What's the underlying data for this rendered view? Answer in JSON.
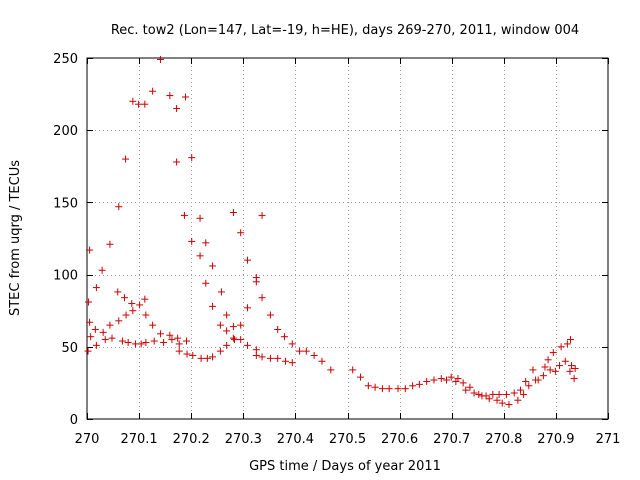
{
  "chart_data": {
    "type": "scatter",
    "title": "Rec. tow2 (Lon=147, Lat=-19, h=HE), days 269-270, 2011, window 004",
    "xlabel": "GPS time / Days of year 2011",
    "ylabel": "STEC from uqrg / TECUs",
    "xlim": [
      270,
      271
    ],
    "ylim": [
      0,
      250
    ],
    "x_ticks": [
      270,
      270.1,
      270.2,
      270.3,
      270.4,
      270.5,
      270.6,
      270.7,
      270.8,
      270.9,
      271
    ],
    "x_tick_labels": [
      "270",
      "270.1",
      "270.2",
      "270.3",
      "270.4",
      "270.5",
      "270.6",
      "270.7",
      "270.8",
      "270.9",
      "271"
    ],
    "y_ticks": [
      0,
      50,
      100,
      150,
      200,
      250
    ],
    "y_tick_labels": [
      "0",
      "50",
      "100",
      "150",
      "200",
      "250"
    ],
    "grid": true,
    "marker": "+",
    "color": "#cc0000",
    "points": [
      [
        270.002,
        47
      ],
      [
        270.007,
        57
      ],
      [
        270.003,
        81
      ],
      [
        270.005,
        117
      ],
      [
        270.005,
        67
      ],
      [
        270.016,
        62
      ],
      [
        270.018,
        51
      ],
      [
        270.018,
        91
      ],
      [
        270.029,
        103
      ],
      [
        270.031,
        60
      ],
      [
        270.035,
        55
      ],
      [
        270.044,
        121
      ],
      [
        270.044,
        65
      ],
      [
        270.048,
        56
      ],
      [
        270.061,
        147
      ],
      [
        270.059,
        88
      ],
      [
        270.061,
        68
      ],
      [
        270.068,
        54
      ],
      [
        270.074,
        180
      ],
      [
        270.072,
        84
      ],
      [
        270.075,
        72
      ],
      [
        270.079,
        53
      ],
      [
        270.088,
        220
      ],
      [
        270.086,
        80
      ],
      [
        270.088,
        75
      ],
      [
        270.093,
        52
      ],
      [
        270.099,
        218
      ],
      [
        270.101,
        79
      ],
      [
        270.104,
        52
      ],
      [
        270.111,
        218
      ],
      [
        270.111,
        83
      ],
      [
        270.113,
        72
      ],
      [
        270.113,
        53
      ],
      [
        270.126,
        227
      ],
      [
        270.126,
        65
      ],
      [
        270.129,
        54
      ],
      [
        270.141,
        249
      ],
      [
        270.141,
        59
      ],
      [
        270.147,
        53
      ],
      [
        270.159,
        224
      ],
      [
        270.159,
        58
      ],
      [
        270.163,
        55
      ],
      [
        270.172,
        215
      ],
      [
        270.172,
        178
      ],
      [
        270.174,
        56
      ],
      [
        270.177,
        52
      ],
      [
        270.177,
        47
      ],
      [
        270.189,
        223
      ],
      [
        270.187,
        141
      ],
      [
        270.191,
        54
      ],
      [
        270.192,
        45
      ],
      [
        270.201,
        181
      ],
      [
        270.201,
        123
      ],
      [
        270.203,
        44
      ],
      [
        270.217,
        139
      ],
      [
        270.217,
        113
      ],
      [
        270.219,
        42
      ],
      [
        270.228,
        122
      ],
      [
        270.228,
        94
      ],
      [
        270.231,
        42
      ],
      [
        270.241,
        106
      ],
      [
        270.241,
        78
      ],
      [
        270.241,
        43
      ],
      [
        270.258,
        88
      ],
      [
        270.256,
        65
      ],
      [
        270.256,
        47
      ],
      [
        270.268,
        72
      ],
      [
        270.268,
        61
      ],
      [
        270.268,
        51
      ],
      [
        270.281,
        143
      ],
      [
        270.281,
        64
      ],
      [
        270.281,
        56
      ],
      [
        270.283,
        55
      ],
      [
        270.295,
        129
      ],
      [
        270.295,
        65
      ],
      [
        270.295,
        55
      ],
      [
        270.308,
        110
      ],
      [
        270.308,
        77
      ],
      [
        270.308,
        51
      ],
      [
        270.325,
        98
      ],
      [
        270.325,
        95
      ],
      [
        270.325,
        48
      ],
      [
        270.325,
        44
      ],
      [
        270.336,
        141
      ],
      [
        270.336,
        84
      ],
      [
        270.336,
        43
      ],
      [
        270.352,
        72
      ],
      [
        270.352,
        42
      ],
      [
        270.366,
        62
      ],
      [
        270.366,
        42
      ],
      [
        270.379,
        57
      ],
      [
        270.381,
        40
      ],
      [
        270.394,
        52
      ],
      [
        270.394,
        39
      ],
      [
        270.408,
        47
      ],
      [
        270.421,
        47
      ],
      [
        270.436,
        44
      ],
      [
        270.451,
        40
      ],
      [
        270.468,
        34
      ],
      [
        270.51,
        34
      ],
      [
        270.525,
        29
      ],
      [
        270.54,
        23
      ],
      [
        270.553,
        22
      ],
      [
        270.567,
        21
      ],
      [
        270.58,
        21
      ],
      [
        270.597,
        21
      ],
      [
        270.611,
        21
      ],
      [
        270.625,
        23
      ],
      [
        270.638,
        24
      ],
      [
        270.652,
        26
      ],
      [
        270.666,
        27
      ],
      [
        270.68,
        28
      ],
      [
        270.69,
        27
      ],
      [
        270.699,
        29
      ],
      [
        270.708,
        26
      ],
      [
        270.712,
        28
      ],
      [
        270.722,
        25
      ],
      [
        270.727,
        20
      ],
      [
        270.735,
        22
      ],
      [
        270.743,
        18
      ],
      [
        270.752,
        17
      ],
      [
        270.758,
        16
      ],
      [
        270.766,
        16
      ],
      [
        270.772,
        14
      ],
      [
        270.779,
        17
      ],
      [
        270.787,
        13
      ],
      [
        270.791,
        17
      ],
      [
        270.797,
        11
      ],
      [
        270.805,
        17
      ],
      [
        270.81,
        10
      ],
      [
        270.82,
        18
      ],
      [
        270.827,
        13
      ],
      [
        270.832,
        20
      ],
      [
        270.838,
        17
      ],
      [
        270.842,
        26
      ],
      [
        270.848,
        23
      ],
      [
        270.856,
        34
      ],
      [
        270.861,
        27
      ],
      [
        270.866,
        27
      ],
      [
        270.876,
        30
      ],
      [
        270.879,
        36
      ],
      [
        270.885,
        41
      ],
      [
        270.889,
        34
      ],
      [
        270.895,
        46
      ],
      [
        270.899,
        33
      ],
      [
        270.907,
        37
      ],
      [
        270.91,
        50
      ],
      [
        270.918,
        40
      ],
      [
        270.922,
        52
      ],
      [
        270.927,
        33
      ],
      [
        270.928,
        55
      ],
      [
        270.93,
        37
      ],
      [
        270.935,
        28
      ],
      [
        270.937,
        35
      ]
    ]
  }
}
